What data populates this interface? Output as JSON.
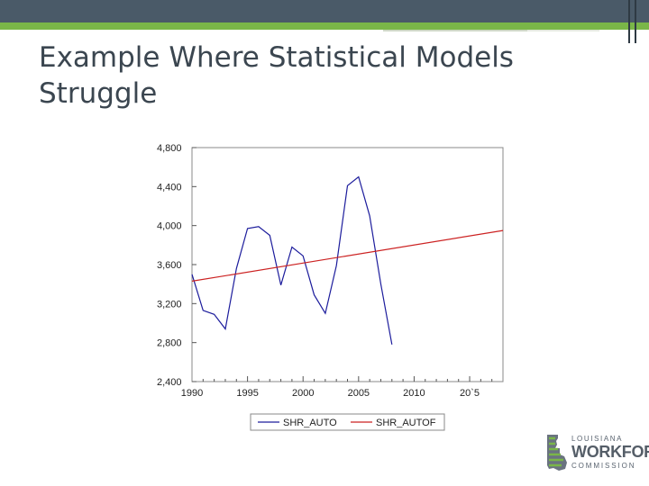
{
  "slide": {
    "title_line1": "Example Where Statistical Models",
    "title_line2": "Struggle"
  },
  "logo": {
    "line1": "LOUISIANA",
    "line2": "WORKFORCE",
    "line3": "COMMISSION",
    "icon": "louisiana-state-shape-icon"
  },
  "colors": {
    "header": "#4a5a68",
    "accent": "#7ab648",
    "series_actual": "#1c1c9c",
    "series_forecast": "#cc2222"
  },
  "chart_data": {
    "type": "line",
    "title": "",
    "xlabel": "",
    "ylabel": "",
    "xlim": [
      1990,
      2018
    ],
    "ylim": [
      2400,
      4800
    ],
    "x_ticks": [
      1990,
      1995,
      2000,
      2005,
      2010,
      2015
    ],
    "x_tick_labels": [
      "1990",
      "1995",
      "2000",
      "2005",
      "2010",
      "20`5"
    ],
    "y_ticks": [
      2400,
      2800,
      3200,
      3600,
      4000,
      4400,
      4800
    ],
    "y_tick_labels": [
      "2,400",
      "2,800",
      "3,200",
      "3,600",
      "4,000",
      "4,400",
      "4,800"
    ],
    "grid": false,
    "legend": "bottom",
    "series": [
      {
        "name": "SHR_AUTO",
        "color": "#1c1c9c",
        "x": [
          1990,
          1991,
          1992,
          1993,
          1994,
          1995,
          1996,
          1997,
          1998,
          1999,
          2000,
          2001,
          2002,
          2003,
          2004,
          2005,
          2006,
          2007,
          2008
        ],
        "y": [
          3500,
          3130,
          3090,
          2940,
          3560,
          3970,
          3990,
          3900,
          3390,
          3780,
          3690,
          3290,
          3100,
          3590,
          4410,
          4500,
          4100,
          3400,
          2780
        ]
      },
      {
        "name": "SHR_AUTOF",
        "color": "#cc2222",
        "x": [
          1990,
          2018
        ],
        "y": [
          3430,
          3950
        ]
      }
    ]
  }
}
